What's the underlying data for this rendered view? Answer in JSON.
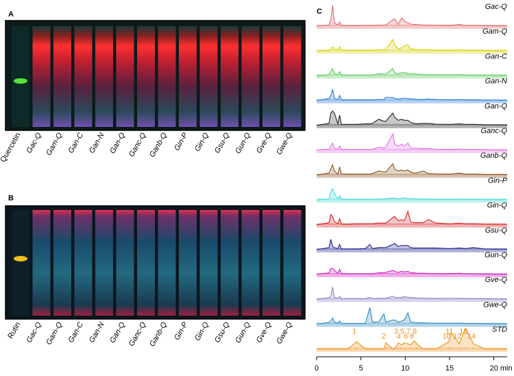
{
  "panels": [
    {
      "label": "A",
      "lanes": [
        "Quercetin",
        "Gac-Q",
        "Gam-Q",
        "Gan-C",
        "Gan-N",
        "Gan-Q",
        "Ganc-Q",
        "Ganb-Q",
        "Gin-P",
        "Gin-Q",
        "Gsu-Q",
        "Gun-Q",
        "Gve-Q",
        "Gwe-Q"
      ]
    },
    {
      "label": "B",
      "lanes": [
        "Rutin",
        "Gac-Q",
        "Gam-Q",
        "Gan-C",
        "Gan-N",
        "Gan-Q",
        "Ganc-Q",
        "Ganb-Q",
        "Gin-P",
        "Gin-Q",
        "Gsu-Q",
        "Gun-Q",
        "Gve-Q",
        "Gwe-Q"
      ]
    }
  ],
  "chart_data": {
    "type": "line",
    "panel_label": "C",
    "x": [
      0,
      1.4,
      1.6,
      1.8,
      2.0,
      2.4,
      2.6,
      2.8,
      3.5,
      4.5,
      5.5,
      6.0,
      6.3,
      7.0,
      7.6,
      7.8,
      8.6,
      8.8,
      9.2,
      9.6,
      9.9,
      10.3,
      10.6,
      11.0,
      11.3,
      12.0,
      12.6,
      13.5,
      14.9,
      15.2,
      16.1,
      16.8,
      17.7,
      19,
      21.5
    ],
    "xlim": [
      0,
      21.5
    ],
    "xticks": [
      0,
      5,
      10,
      15,
      {
        "value": 20,
        "label": "20 min"
      }
    ],
    "series": [
      {
        "name": "Gac-Q",
        "color": "#e06a6a",
        "values": [
          0,
          5,
          30,
          100,
          15,
          5,
          20,
          3,
          2,
          2,
          3,
          3,
          3,
          5,
          5,
          5,
          30,
          35,
          8,
          40,
          25,
          15,
          10,
          8,
          8,
          5,
          5,
          4,
          3,
          3,
          8,
          3,
          3,
          2,
          1
        ]
      },
      {
        "name": "Gam-Q",
        "color": "#d8d000",
        "values": [
          0,
          3,
          10,
          20,
          8,
          5,
          20,
          3,
          3,
          3,
          3,
          3,
          3,
          5,
          5,
          8,
          55,
          30,
          10,
          15,
          25,
          30,
          10,
          8,
          5,
          5,
          5,
          3,
          3,
          3,
          5,
          3,
          3,
          2,
          1
        ]
      },
      {
        "name": "Gan-C",
        "color": "#5cc85c",
        "values": [
          0,
          5,
          20,
          35,
          10,
          5,
          20,
          3,
          3,
          3,
          3,
          3,
          3,
          10,
          8,
          8,
          35,
          15,
          10,
          15,
          15,
          12,
          8,
          10,
          8,
          6,
          5,
          5,
          4,
          4,
          6,
          3,
          3,
          2,
          1
        ]
      },
      {
        "name": "Gan-N",
        "color": "#2a7ad8",
        "values": [
          0,
          10,
          25,
          55,
          10,
          5,
          25,
          3,
          3,
          3,
          3,
          3,
          3,
          5,
          5,
          15,
          15,
          10,
          8,
          10,
          12,
          10,
          8,
          8,
          6,
          5,
          8,
          5,
          4,
          4,
          5,
          3,
          3,
          2,
          1
        ]
      },
      {
        "name": "Gan-Q",
        "color": "#222222",
        "values": [
          0,
          10,
          60,
          70,
          60,
          8,
          50,
          5,
          5,
          5,
          8,
          8,
          10,
          30,
          20,
          20,
          60,
          40,
          25,
          30,
          25,
          25,
          15,
          10,
          8,
          10,
          10,
          6,
          5,
          5,
          8,
          5,
          5,
          3,
          2
        ]
      },
      {
        "name": "Ganc-Q",
        "color": "#e070e0",
        "values": [
          0,
          5,
          20,
          35,
          10,
          5,
          20,
          3,
          3,
          3,
          3,
          3,
          5,
          15,
          10,
          15,
          80,
          30,
          20,
          30,
          20,
          35,
          10,
          10,
          10,
          8,
          8,
          5,
          4,
          4,
          6,
          3,
          3,
          2,
          1
        ]
      },
      {
        "name": "Ganb-Q",
        "color": "#8a5420",
        "values": [
          0,
          10,
          30,
          50,
          20,
          5,
          40,
          5,
          5,
          5,
          5,
          5,
          8,
          20,
          15,
          15,
          55,
          30,
          20,
          25,
          20,
          25,
          15,
          10,
          10,
          20,
          8,
          6,
          5,
          5,
          10,
          5,
          5,
          3,
          2
        ]
      },
      {
        "name": "Gin-P",
        "color": "#40d8d8",
        "values": [
          0,
          5,
          40,
          55,
          30,
          5,
          20,
          3,
          3,
          3,
          3,
          3,
          3,
          5,
          5,
          5,
          10,
          8,
          5,
          8,
          10,
          8,
          5,
          5,
          5,
          4,
          4,
          3,
          3,
          3,
          4,
          3,
          3,
          2,
          1
        ]
      },
      {
        "name": "Gin-Q",
        "color": "#d82020",
        "values": [
          0,
          10,
          50,
          40,
          15,
          5,
          30,
          3,
          3,
          5,
          5,
          5,
          5,
          8,
          8,
          8,
          35,
          40,
          20,
          25,
          20,
          65,
          15,
          10,
          10,
          10,
          25,
          8,
          5,
          5,
          8,
          5,
          5,
          3,
          2
        ]
      },
      {
        "name": "Gsu-Q",
        "color": "#20208a",
        "values": [
          0,
          10,
          50,
          15,
          10,
          5,
          25,
          3,
          3,
          3,
          5,
          25,
          5,
          10,
          10,
          10,
          25,
          30,
          15,
          20,
          20,
          20,
          10,
          8,
          8,
          8,
          8,
          8,
          5,
          5,
          8,
          5,
          10,
          3,
          2
        ]
      },
      {
        "name": "Gun-Q",
        "color": "#d020c0",
        "values": [
          0,
          8,
          30,
          30,
          20,
          5,
          25,
          3,
          3,
          3,
          3,
          3,
          3,
          8,
          8,
          10,
          20,
          15,
          10,
          15,
          12,
          15,
          8,
          8,
          6,
          6,
          5,
          4,
          4,
          4,
          6,
          3,
          3,
          2,
          1
        ]
      },
      {
        "name": "Gve-Q",
        "color": "#8a88c8",
        "values": [
          0,
          8,
          15,
          60,
          10,
          5,
          15,
          3,
          3,
          3,
          3,
          10,
          3,
          5,
          5,
          5,
          15,
          10,
          8,
          10,
          12,
          10,
          8,
          8,
          6,
          6,
          5,
          4,
          4,
          4,
          5,
          3,
          3,
          2,
          1
        ]
      },
      {
        "name": "Gwe-Q",
        "color": "#2a8ac0",
        "values": [
          0,
          8,
          15,
          30,
          10,
          5,
          15,
          3,
          3,
          3,
          3,
          80,
          10,
          10,
          50,
          10,
          20,
          20,
          10,
          15,
          20,
          55,
          10,
          8,
          6,
          6,
          5,
          4,
          4,
          4,
          5,
          3,
          3,
          2,
          1
        ]
      },
      {
        "name": "STD",
        "color": "#f0901a",
        "values": [
          0,
          0,
          0,
          0,
          0,
          0,
          0,
          0,
          0,
          35,
          0,
          0,
          0,
          0,
          0,
          30,
          0,
          0,
          30,
          20,
          30,
          25,
          20,
          40,
          25,
          0,
          0,
          0,
          35,
          80,
          25,
          100,
          25,
          0,
          0
        ]
      }
    ],
    "peaks": [
      {
        "label": "1",
        "x": 4.5
      },
      {
        "label": "2",
        "x": 7.8
      },
      {
        "label": "3",
        "x": 9.2
      },
      {
        "label": "4",
        "x": 9.5
      },
      {
        "label": "5",
        "x": 9.9
      },
      {
        "label": "6",
        "x": 10.3
      },
      {
        "label": "7",
        "x": 10.6
      },
      {
        "label": "8",
        "x": 11.0
      },
      {
        "label": "9",
        "x": 11.3
      },
      {
        "label": "10",
        "x": 14.9
      },
      {
        "label": "11",
        "x": 15.2
      },
      {
        "label": "12",
        "x": 16.1
      },
      {
        "label": "13",
        "x": 16.8
      },
      {
        "label": "14",
        "x": 17.7
      }
    ]
  }
}
